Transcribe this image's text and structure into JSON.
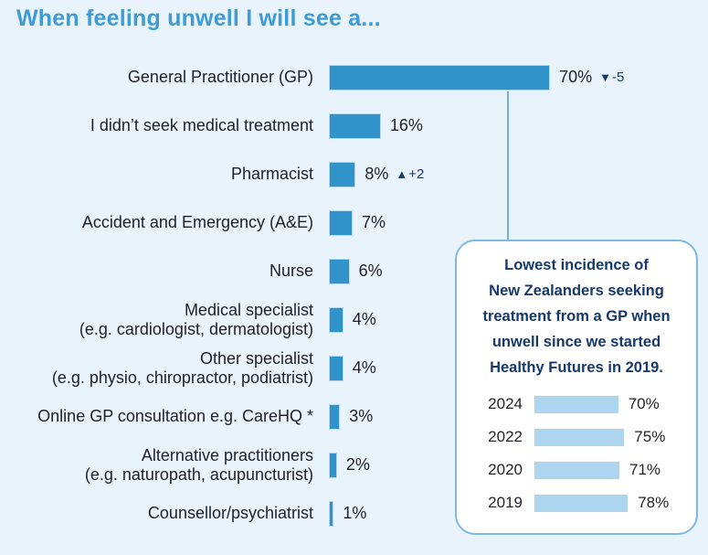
{
  "title": "When feeling unwell I will see a...",
  "colors": {
    "background": "#e8f3fb",
    "bar_blue": "#3093ca",
    "bar_border": "#b7d8ec",
    "title_blue": "#3e9bd4",
    "navy_accent": "#16386b",
    "label_text": "#1f2028",
    "trend_bar_light_blue": "#aed5f0",
    "card_border": "#7fb9e2",
    "card_background": "#ffffff",
    "connector_line": "#74b2dd"
  },
  "chart_data": [
    {
      "id": "main",
      "type": "bar",
      "orientation": "horizontal",
      "title": "When feeling unwell I will see a...",
      "unit": "%",
      "grid": false,
      "axis_shown": false,
      "value_range": [
        0,
        100
      ],
      "categories": [
        "General Practitioner (GP)",
        "I didn’t seek medical treatment",
        "Pharmacist",
        "Accident and Emergency (A&E)",
        "Nurse",
        "Medical specialist\n(e.g. cardiologist, dermatologist)",
        "Other specialist\n(e.g. physio, chiropractor, podiatrist)",
        "Online GP consultation e.g. CareHQ *",
        "Alternative practitioners\n(e.g. naturopath, acupuncturist)",
        "Counsellor/psychiatrist"
      ],
      "values": [
        70,
        16,
        8,
        7,
        6,
        4,
        4,
        3,
        2,
        1
      ],
      "value_labels": [
        "70%",
        "16%",
        "8%",
        "7%",
        "6%",
        "4%",
        "4%",
        "3%",
        "2%",
        "1%"
      ],
      "deltas": [
        {
          "index": 0,
          "direction": "down",
          "text": "-5"
        },
        {
          "index": 2,
          "direction": "up",
          "text": "+2"
        }
      ]
    },
    {
      "id": "gp-trend",
      "type": "bar",
      "orientation": "horizontal",
      "unit": "%",
      "grid": false,
      "axis_shown": false,
      "value_range": [
        0,
        100
      ],
      "categories": [
        "2024",
        "2022",
        "2020",
        "2019"
      ],
      "values": [
        70,
        75,
        71,
        78
      ],
      "value_labels": [
        "70%",
        "75%",
        "71%",
        "78%"
      ]
    }
  ],
  "callout": {
    "text": "Lowest incidence of\nNew Zealanders seeking\ntreatment from a GP when\nunwell since we started\nHealthy Futures in 2019."
  }
}
